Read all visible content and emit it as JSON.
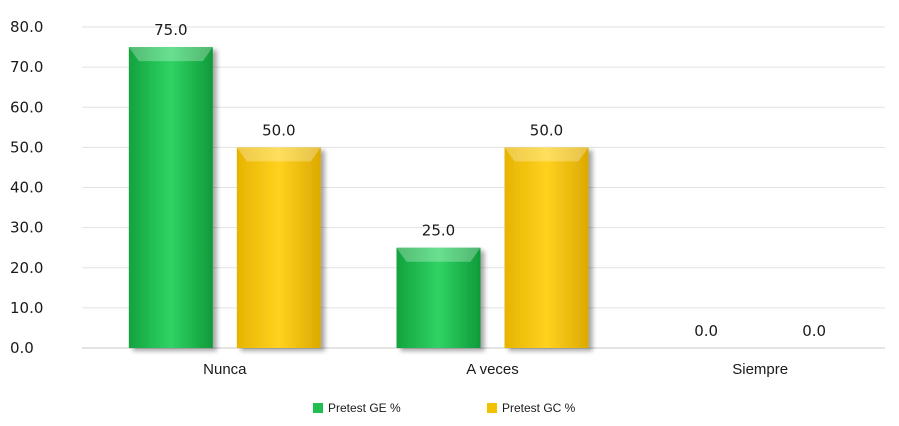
{
  "chart_data": {
    "type": "bar",
    "categories": [
      "Nunca",
      "A veces",
      "Siempre"
    ],
    "series": [
      {
        "name": "Pretest GE %",
        "values": [
          75.0,
          25.0,
          0.0
        ],
        "color": "#1fbf4f"
      },
      {
        "name": "Pretest GC %",
        "values": [
          50.0,
          50.0,
          0.0
        ],
        "color": "#f2c200"
      }
    ],
    "ylim": [
      0,
      80
    ],
    "yticks": [
      "0.0",
      "10.0",
      "20.0",
      "30.0",
      "40.0",
      "50.0",
      "60.0",
      "70.0",
      "80.0"
    ],
    "data_label_format": "0.0",
    "grid": true,
    "legend": "bottom"
  }
}
